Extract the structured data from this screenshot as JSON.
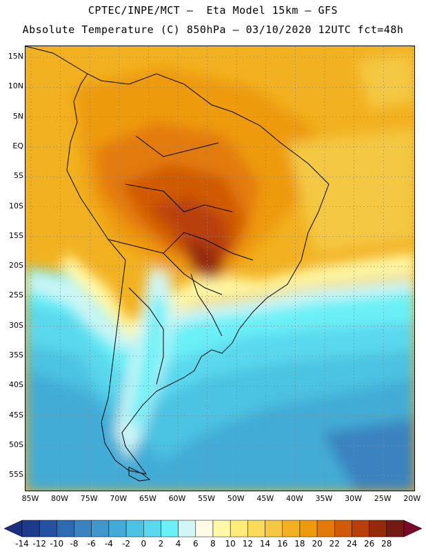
{
  "header": {
    "line1": "CPTEC/INPE/MCT —  Eta Model 15km — GFS",
    "line2": "Absolute Temperature (C) 850hPa — 03/10/2020 12UTC fct=48h"
  },
  "map": {
    "lat_labels": [
      "15N",
      "10N",
      "5N",
      "EQ",
      "5S",
      "10S",
      "15S",
      "20S",
      "25S",
      "30S",
      "35S",
      "40S",
      "45S",
      "50S",
      "55S"
    ],
    "lon_labels": [
      "85W",
      "80W",
      "75W",
      "70W",
      "65W",
      "60W",
      "55W",
      "50W",
      "45W",
      "40W",
      "35W",
      "30W",
      "25W",
      "20W"
    ],
    "grid": "dotted",
    "field": "850hPa absolute temperature, warm (24-28 C) over central Brazil, cool (-4 to 4 C) over the South Atlantic"
  },
  "colorbar": {
    "labels": [
      "-14",
      "-12",
      "-10",
      "-8",
      "-6",
      "-4",
      "-2",
      "0",
      "2",
      "4",
      "6",
      "8",
      "10",
      "12",
      "14",
      "16",
      "18",
      "20",
      "22",
      "24",
      "26",
      "28"
    ],
    "colors": [
      "#1e3a8a",
      "#2452a0",
      "#2d6ab2",
      "#3a82c0",
      "#3f97cb",
      "#42acd6",
      "#4cc3e2",
      "#5ad8ee",
      "#6bf0f7",
      "#d2f6f6",
      "#fffbe6",
      "#fff9a8",
      "#ffec7a",
      "#fbdc5a",
      "#f4c842",
      "#f2b120",
      "#ee9a0a",
      "#e37a08",
      "#d05a05",
      "#b83f0a",
      "#952a0a",
      "#731a12"
    ],
    "left_arrow_color": "#1a2f80",
    "right_arrow_color": "#7a0a2a"
  }
}
